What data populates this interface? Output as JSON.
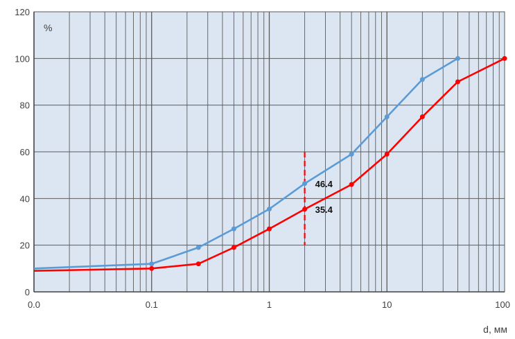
{
  "chart_data": {
    "type": "line",
    "x_scale": "log",
    "xlim": [
      0.01,
      100
    ],
    "ylim": [
      0,
      120
    ],
    "x_ticks": [
      {
        "value": 0.01,
        "label": "0.0"
      },
      {
        "value": 0.1,
        "label": "0.1"
      },
      {
        "value": 1,
        "label": "1"
      },
      {
        "value": 10,
        "label": "10"
      },
      {
        "value": 100,
        "label": "100"
      }
    ],
    "y_ticks": [
      0,
      20,
      40,
      60,
      80,
      100,
      120
    ],
    "ylabel": "%",
    "xlabel": "d, мм",
    "grid": true,
    "series": [
      {
        "color": "#5b9bd5",
        "x": [
          0.01,
          0.1,
          0.25,
          0.5,
          1,
          2,
          5,
          10,
          20,
          40
        ],
        "y": [
          10,
          12,
          19,
          27,
          35.5,
          46.4,
          59,
          75,
          91,
          100
        ]
      },
      {
        "color": "#ff0000",
        "x": [
          0.01,
          0.1,
          0.25,
          0.5,
          1,
          2,
          5,
          10,
          20,
          40,
          100
        ],
        "y": [
          9,
          10,
          12,
          19,
          27,
          35.4,
          46,
          59,
          75,
          90,
          100
        ]
      }
    ],
    "marker_line": {
      "x": 2,
      "y_range": [
        20,
        60
      ],
      "color": "#ff0000",
      "style": "dashed"
    },
    "annotations": [
      {
        "text": "46.4",
        "x": 2,
        "y": 46.4
      },
      {
        "text": "35.4",
        "x": 2,
        "y": 35.4
      }
    ]
  },
  "colors": {
    "plot_bg": "#dce6f2",
    "grid": "#5a5a5a",
    "axis": "#404040"
  }
}
